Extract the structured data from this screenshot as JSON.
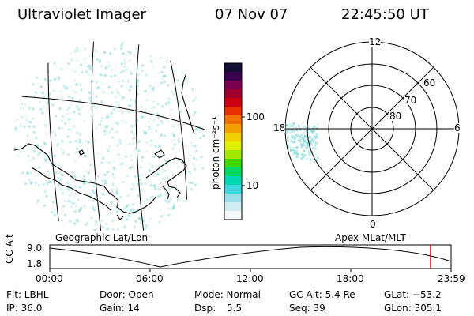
{
  "header": {
    "title": "Ultraviolet Imager",
    "date": "07 Nov 07",
    "time": "22:45:50 UT"
  },
  "colorbar": {
    "label": "photon cm⁻²s⁻¹",
    "ticks": [
      "100",
      "10"
    ],
    "colors": [
      "#101030",
      "#3a0050",
      "#7a0050",
      "#a00030",
      "#cc0010",
      "#e83000",
      "#f07000",
      "#f0a000",
      "#f0d000",
      "#e0f000",
      "#a0e800",
      "#40d800",
      "#00d860",
      "#00d8b0",
      "#40d8e0",
      "#9adfe8",
      "#d0eef2",
      "#f4f8fa"
    ]
  },
  "left_panel": {
    "caption": "Geographic Lat/Lon",
    "colors": {
      "aurora": "#7fd6d6",
      "grid": "#000000"
    }
  },
  "right_panel": {
    "caption": "Apex MLat/MLT",
    "mlt_labels": {
      "top": "12",
      "left": "18",
      "right": "6",
      "bottom": "0"
    },
    "lat_labels": [
      "60",
      "70",
      "80"
    ]
  },
  "timeline": {
    "ylabel": "GC Alt",
    "y_ticks": [
      "9.0",
      "1.8"
    ],
    "x_ticks": [
      "00:00",
      "06:00",
      "12:00",
      "18:00",
      "23:59"
    ],
    "current_time_fraction": 0.9485,
    "marker_color": "#cc0000"
  },
  "info": {
    "flt": "Flt: LBHL",
    "ip": "IP: 36.0",
    "door": "Door: Open",
    "gain": "Gain: 14",
    "mode": "Mode: Normal",
    "dsp_label": "Dsp:",
    "dsp_value": "5.5",
    "gc_alt": "GC Alt: 5.4 Re",
    "seq": "Seq: 39",
    "glat": "GLat: −53.2",
    "glon": "GLon: 305.1"
  }
}
